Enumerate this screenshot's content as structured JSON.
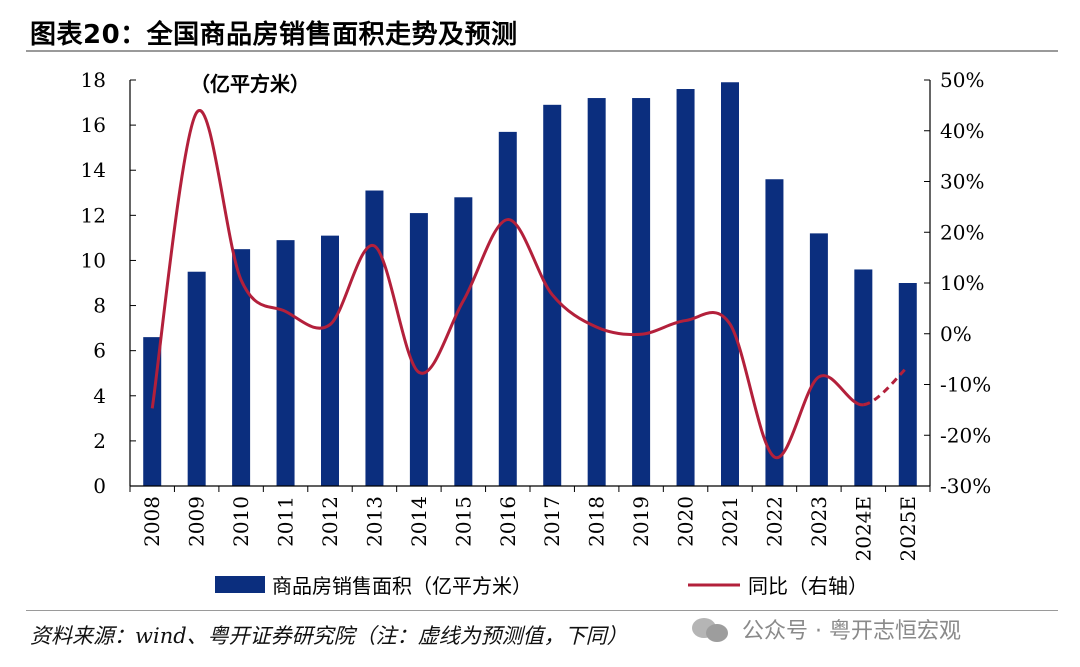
{
  "header": {
    "title": "图表20：全国商品房销售面积走势及预测"
  },
  "footer": {
    "source": "资料来源：wind、粤开证券研究院（注：虚线为预测值，下同）",
    "watermark": "公众号 · 粤开志恒宏观",
    "watermark_icon": "wechat-icon"
  },
  "chart_data": {
    "type": "bar",
    "unit_label": "（亿平方米）",
    "categories": [
      "2008",
      "2009",
      "2010",
      "2011",
      "2012",
      "2013",
      "2014",
      "2015",
      "2016",
      "2017",
      "2018",
      "2019",
      "2020",
      "2021",
      "2022",
      "2023",
      "2024E",
      "2025E"
    ],
    "series": [
      {
        "name": "商品房销售面积（亿平方米）",
        "type": "bar",
        "axis": "left",
        "color": "#0b2e7e",
        "values": [
          6.6,
          9.5,
          10.5,
          10.9,
          11.1,
          13.1,
          12.1,
          12.8,
          15.7,
          16.9,
          17.2,
          17.2,
          17.6,
          17.9,
          13.6,
          11.2,
          9.6,
          9.0
        ]
      },
      {
        "name": "同比（右轴）",
        "type": "line",
        "axis": "right",
        "color": "#b3203b",
        "values": [
          -14.7,
          43.6,
          10.6,
          4.4,
          1.8,
          17.3,
          -7.6,
          6.5,
          22.5,
          7.7,
          1.3,
          -0.1,
          2.6,
          1.9,
          -24.3,
          -8.5,
          -14.0,
          -6.5
        ],
        "forecast_from_index": 16
      }
    ],
    "y_left": {
      "min": 0,
      "max": 18,
      "ticks": [
        "0",
        "2",
        "4",
        "6",
        "8",
        "10",
        "12",
        "14",
        "16",
        "18"
      ]
    },
    "y_right": {
      "min": -30,
      "max": 50,
      "ticks": [
        "-30%",
        "-20%",
        "-10%",
        "0%",
        "10%",
        "20%",
        "30%",
        "40%",
        "50%"
      ]
    },
    "legend": {
      "placement": "bottom"
    },
    "grid": false
  }
}
